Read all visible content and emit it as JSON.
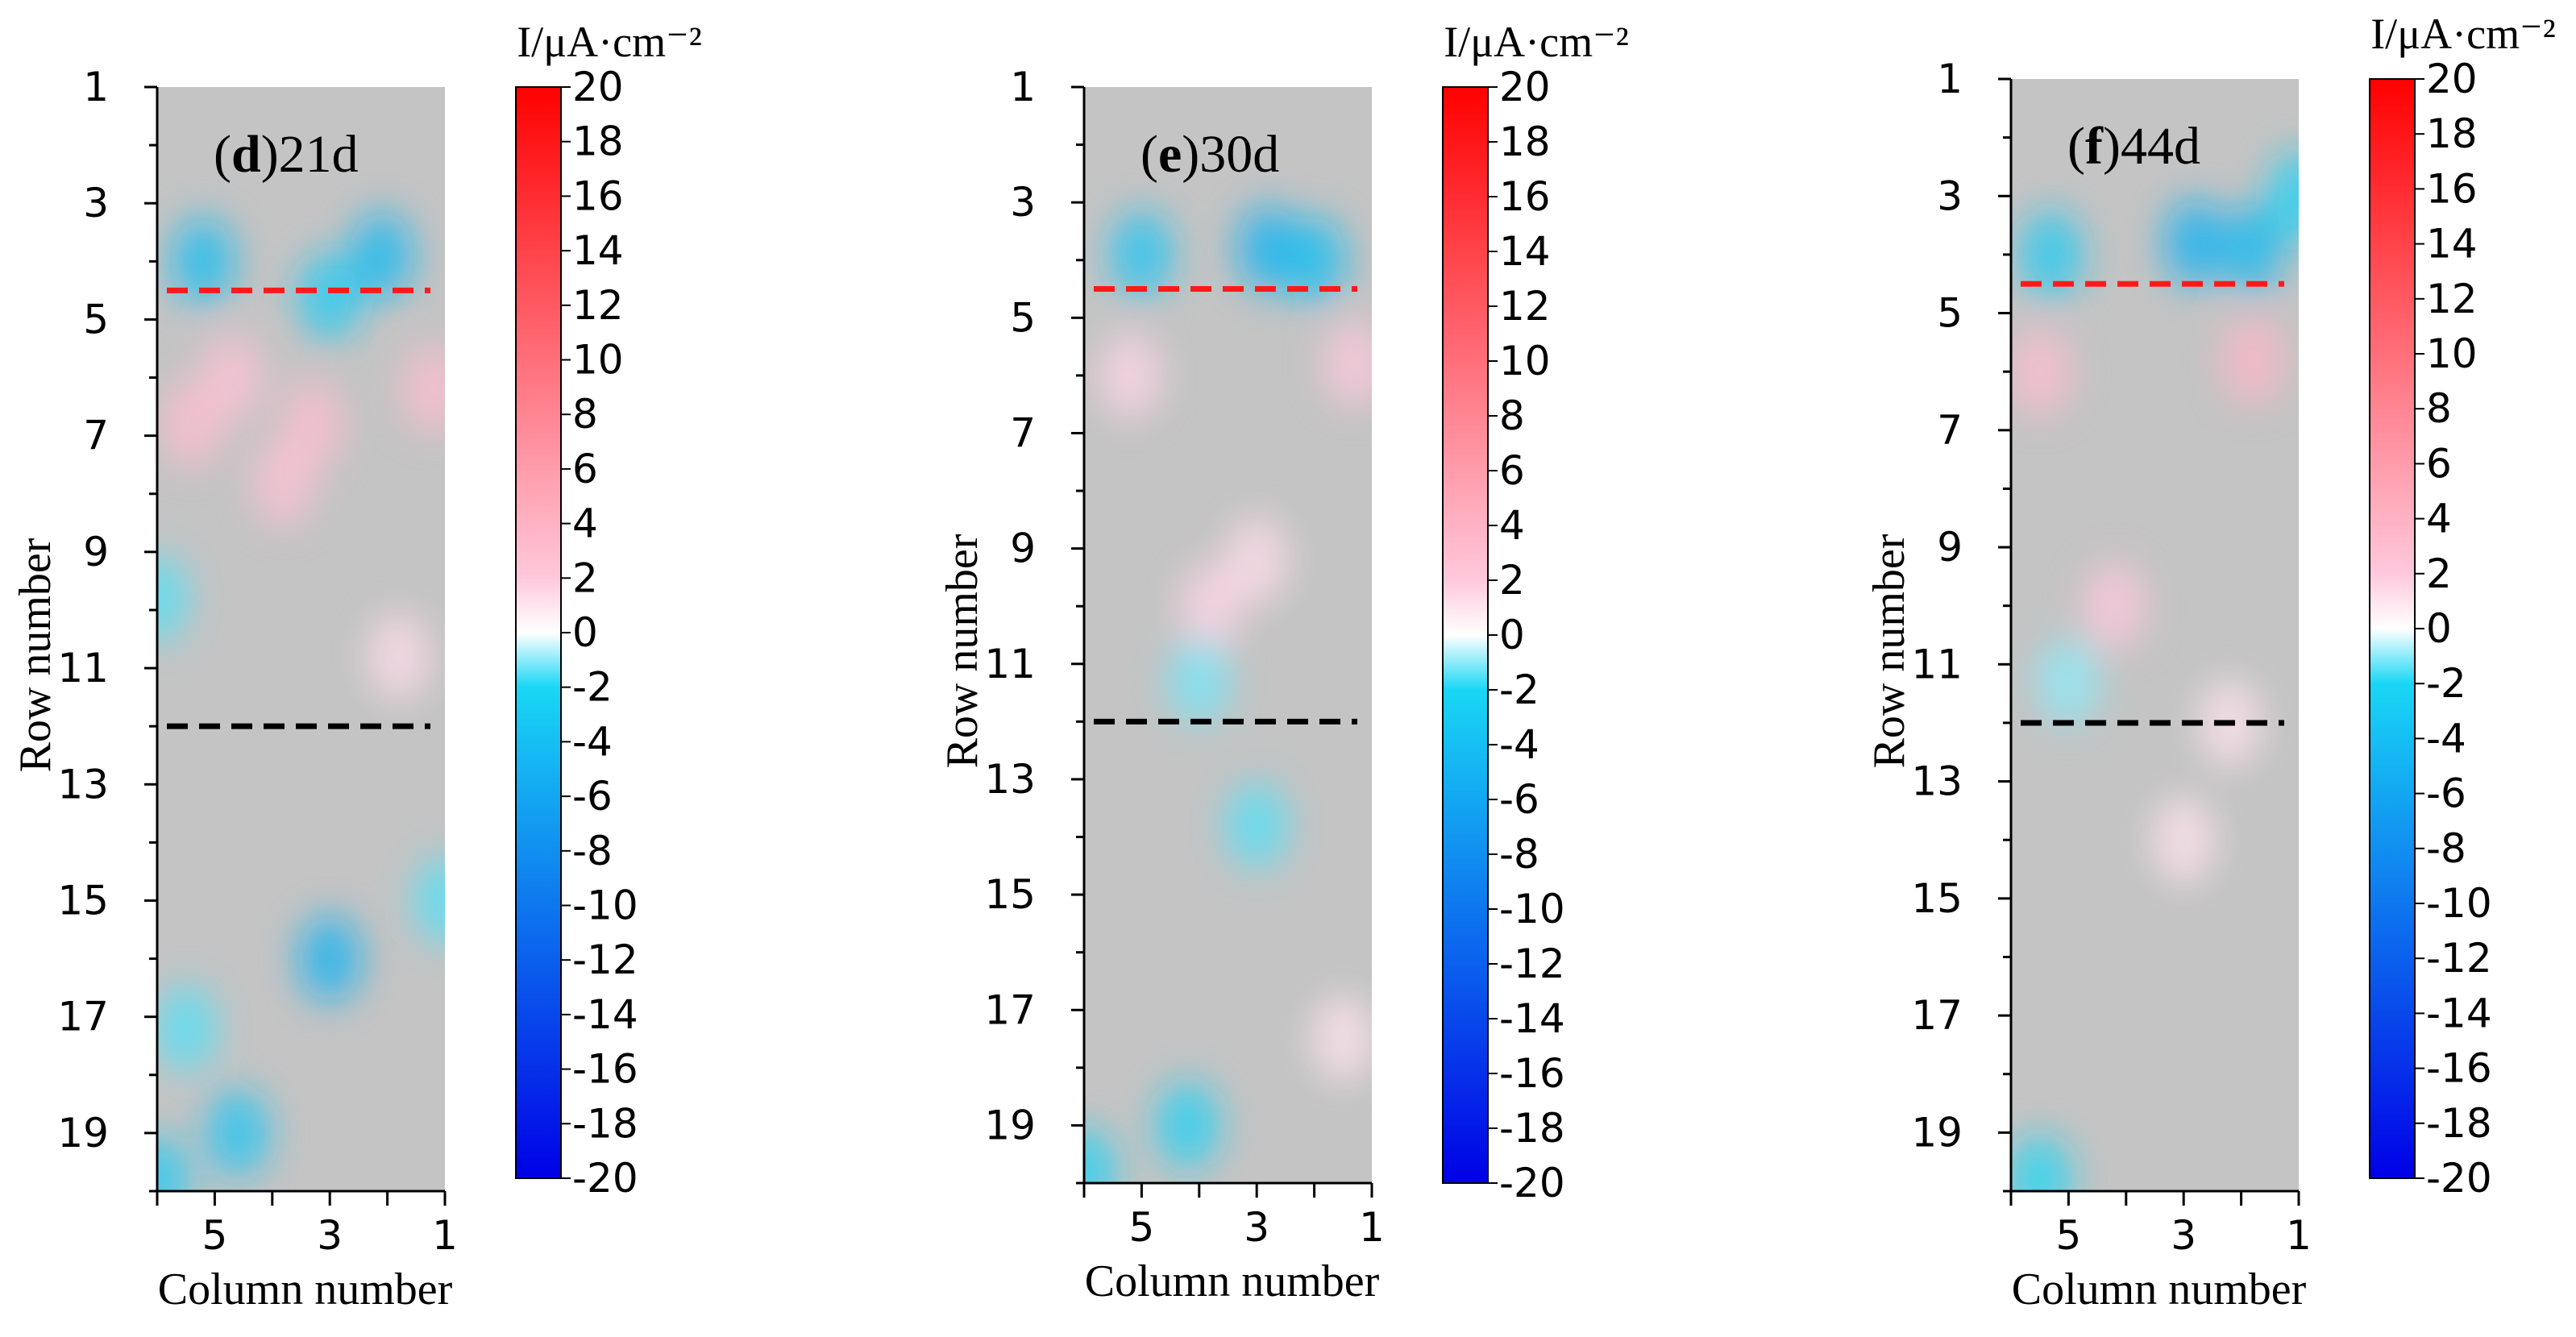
{
  "chart_data": [
    {
      "type": "heatmap",
      "panel_letter": "d",
      "panel_suffix": "21d",
      "xlabel": "Column number",
      "ylabel": "Row number",
      "x_ticks": [
        "5",
        "3",
        "1"
      ],
      "y_ticks": [
        "1",
        "3",
        "5",
        "7",
        "9",
        "11",
        "13",
        "15",
        "17",
        "19"
      ],
      "xlim": [
        6,
        1
      ],
      "ylim": [
        1,
        20
      ],
      "colorbar_label": "I/μA·cm⁻²",
      "colorbar_ticks": [
        "20",
        "18",
        "16",
        "14",
        "12",
        "10",
        "8",
        "6",
        "4",
        "2",
        "0",
        "-2",
        "-4",
        "-6",
        "-8",
        "-10",
        "-12",
        "-14",
        "-16",
        "-18",
        "-20"
      ],
      "colorbar_range": [
        -20,
        20
      ],
      "reference_lines": [
        {
          "row": 4.5,
          "color": "#ff1a1a"
        },
        {
          "row": 12.0,
          "color": "#000000"
        }
      ],
      "features": [
        {
          "col": 5.2,
          "row": 4.0,
          "value": -4.0
        },
        {
          "col": 2.1,
          "row": 3.9,
          "value": -4.5
        },
        {
          "col": 3.0,
          "row": 4.6,
          "value": -3.0
        },
        {
          "col": 5.4,
          "row": 6.8,
          "value": 3.0
        },
        {
          "col": 4.7,
          "row": 6.0,
          "value": 2.5
        },
        {
          "col": 3.3,
          "row": 6.8,
          "value": 3.0
        },
        {
          "col": 3.8,
          "row": 7.8,
          "value": 2.5
        },
        {
          "col": 1.2,
          "row": 6.2,
          "value": 3.0
        },
        {
          "col": 6.0,
          "row": 9.8,
          "value": -1.5
        },
        {
          "col": 1.8,
          "row": 10.8,
          "value": 1.2
        },
        {
          "col": 3.0,
          "row": 16.0,
          "value": -5.0
        },
        {
          "col": 4.6,
          "row": 19.0,
          "value": -3.5
        },
        {
          "col": 6.0,
          "row": 19.8,
          "value": -3.0
        },
        {
          "col": 1.0,
          "row": 15.0,
          "value": -1.5
        },
        {
          "col": 5.5,
          "row": 17.2,
          "value": -1.5
        }
      ]
    },
    {
      "type": "heatmap",
      "panel_letter": "e",
      "panel_suffix": "30d",
      "xlabel": "Column number",
      "ylabel": "Row number",
      "x_ticks": [
        "5",
        "3",
        "1"
      ],
      "y_ticks": [
        "1",
        "3",
        "5",
        "7",
        "9",
        "11",
        "13",
        "15",
        "17",
        "19"
      ],
      "xlim": [
        6,
        1
      ],
      "ylim": [
        1,
        20
      ],
      "colorbar_label": "I/μA·cm⁻²",
      "colorbar_ticks": [
        "20",
        "18",
        "16",
        "14",
        "12",
        "10",
        "8",
        "6",
        "4",
        "2",
        "0",
        "-2",
        "-4",
        "-6",
        "-8",
        "-10",
        "-12",
        "-14",
        "-16",
        "-18",
        "-20"
      ],
      "colorbar_range": [
        -20,
        20
      ],
      "reference_lines": [
        {
          "row": 4.5,
          "color": "#ff1a1a"
        },
        {
          "row": 12.0,
          "color": "#000000"
        }
      ],
      "features": [
        {
          "col": 5.0,
          "row": 3.9,
          "value": -3.5
        },
        {
          "col": 2.8,
          "row": 3.8,
          "value": -5.0
        },
        {
          "col": 2.0,
          "row": 4.0,
          "value": -4.0
        },
        {
          "col": 5.2,
          "row": 6.0,
          "value": 1.5
        },
        {
          "col": 1.3,
          "row": 5.8,
          "value": 2.0
        },
        {
          "col": 3.8,
          "row": 10.0,
          "value": 1.5
        },
        {
          "col": 3.0,
          "row": 9.2,
          "value": 1.2
        },
        {
          "col": 4.0,
          "row": 11.3,
          "value": -1.2
        },
        {
          "col": 3.0,
          "row": 13.8,
          "value": -1.5
        },
        {
          "col": 4.2,
          "row": 19.0,
          "value": -2.5
        },
        {
          "col": 6.0,
          "row": 19.8,
          "value": -2.5
        },
        {
          "col": 1.5,
          "row": 17.5,
          "value": 1.0
        }
      ]
    },
    {
      "type": "heatmap",
      "panel_letter": "f",
      "panel_suffix": "44d",
      "xlabel": "Column number",
      "ylabel": "Row number",
      "x_ticks": [
        "5",
        "3",
        "1"
      ],
      "y_ticks": [
        "1",
        "3",
        "5",
        "7",
        "9",
        "11",
        "13",
        "15",
        "17",
        "19"
      ],
      "xlim": [
        6,
        1
      ],
      "ylim": [
        1,
        20
      ],
      "colorbar_label": "I/μA·cm⁻²",
      "colorbar_ticks": [
        "20",
        "18",
        "16",
        "14",
        "12",
        "10",
        "8",
        "6",
        "4",
        "2",
        "0",
        "-2",
        "-4",
        "-6",
        "-8",
        "-10",
        "-12",
        "-14",
        "-16",
        "-18",
        "-20"
      ],
      "colorbar_range": [
        -20,
        20
      ],
      "reference_lines": [
        {
          "row": 4.5,
          "color": "#ff1a1a"
        },
        {
          "row": 12.0,
          "color": "#000000"
        }
      ],
      "features": [
        {
          "col": 5.3,
          "row": 4.0,
          "value": -3.0
        },
        {
          "col": 2.8,
          "row": 3.8,
          "value": -5.0
        },
        {
          "col": 1.8,
          "row": 3.9,
          "value": -4.5
        },
        {
          "col": 1.0,
          "row": 3.0,
          "value": -2.5
        },
        {
          "col": 5.5,
          "row": 6.0,
          "value": 3.0
        },
        {
          "col": 1.8,
          "row": 5.8,
          "value": 3.5
        },
        {
          "col": 4.2,
          "row": 10.0,
          "value": 2.0
        },
        {
          "col": 5.0,
          "row": 11.3,
          "value": -1.0
        },
        {
          "col": 2.2,
          "row": 12.0,
          "value": 1.0
        },
        {
          "col": 5.5,
          "row": 19.8,
          "value": -2.0
        },
        {
          "col": 3.0,
          "row": 14.0,
          "value": 1.0
        }
      ]
    }
  ]
}
